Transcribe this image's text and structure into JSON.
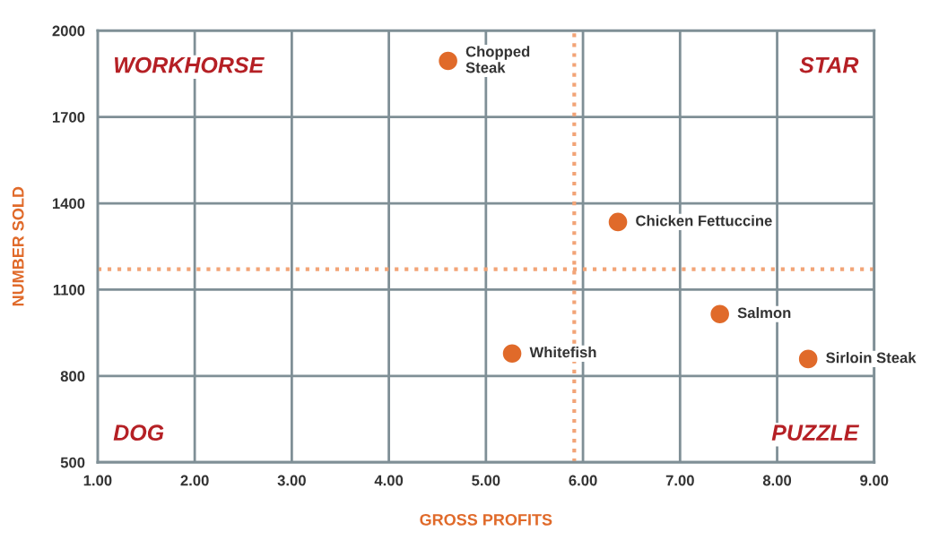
{
  "chart_data": {
    "type": "scatter",
    "xlabel": "GROSS PROFITS",
    "ylabel": "NUMBER SOLD",
    "series": [
      {
        "color": "#e06a2a",
        "x": [
          4.61,
          6.36,
          7.41,
          5.27,
          8.32
        ],
        "values": [
          1895,
          1335,
          1015,
          878,
          859
        ]
      }
    ],
    "marker": "circle",
    "xlim": [
      1,
      9
    ],
    "ylim": [
      500,
      2000
    ],
    "xticks": [
      {
        "value": 1,
        "label": "1.00"
      },
      {
        "value": 2,
        "label": "2.00"
      },
      {
        "value": 3,
        "label": "3.00"
      },
      {
        "value": 4,
        "label": "4.00"
      },
      {
        "value": 5,
        "label": "5.00"
      },
      {
        "value": 6,
        "label": "6.00"
      },
      {
        "value": 7,
        "label": "7.00"
      },
      {
        "value": 8,
        "label": "8.00"
      },
      {
        "value": 9,
        "label": "9.00"
      }
    ],
    "yticks": [
      500,
      800,
      1100,
      1400,
      1700,
      2000
    ],
    "grid": true,
    "ref_lines": [
      {
        "axis": "x",
        "value": 5.91,
        "color": "#f2a477",
        "line_style": "dotted"
      },
      {
        "axis": "y",
        "value": 1171,
        "color": "#f2a477",
        "line_style": "dotted"
      }
    ],
    "annotations": [
      {
        "text": "Chopped\nSteak",
        "x": 4.61,
        "y": 1895
      },
      {
        "text": "Chicken Fettuccine",
        "x": 6.36,
        "y": 1335
      },
      {
        "text": "Salmon",
        "x": 7.41,
        "y": 1015
      },
      {
        "text": "Whitefish",
        "x": 5.27,
        "y": 878
      },
      {
        "text": "Sirloin Steak",
        "x": 8.32,
        "y": 859
      },
      "WORKHORSE",
      "STAR",
      "DOG",
      "PUZZLE"
    ]
  }
}
